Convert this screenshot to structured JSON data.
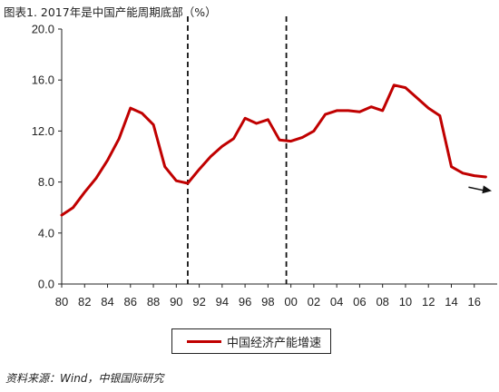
{
  "title": "图表1. 2017年是中国产能周期底部（%）",
  "source": "资料来源：Wind，中银国际研究",
  "legend": {
    "label": "中国经济产能增速"
  },
  "colors": {
    "series": "#c00000",
    "axis": "#222222",
    "markers": "#111111"
  },
  "chart_data": {
    "type": "line",
    "xlabel": "",
    "ylabel": "",
    "ylim": [
      0,
      20
    ],
    "xlim": [
      1980,
      2018
    ],
    "yticks": [
      0,
      4,
      8,
      12,
      16,
      20
    ],
    "ytick_labels": [
      "0.0",
      "4.0",
      "8.0",
      "12.0",
      "16.0",
      "20.0"
    ],
    "xticks": [
      1980,
      1982,
      1984,
      1986,
      1988,
      1990,
      1992,
      1994,
      1996,
      1998,
      2000,
      2002,
      2004,
      2006,
      2008,
      2010,
      2012,
      2014,
      2016
    ],
    "xtick_labels": [
      "80",
      "82",
      "84",
      "86",
      "88",
      "90",
      "92",
      "94",
      "96",
      "98",
      "00",
      "02",
      "04",
      "06",
      "08",
      "10",
      "12",
      "14",
      "16"
    ],
    "grid": false,
    "legend_position": "bottom",
    "series": [
      {
        "name": "中国经济产能增速",
        "x": [
          1980,
          1981,
          1982,
          1983,
          1984,
          1985,
          1986,
          1987,
          1988,
          1989,
          1990,
          1991,
          1992,
          1993,
          1994,
          1995,
          1996,
          1997,
          1998,
          1999,
          2000,
          2001,
          2002,
          2003,
          2004,
          2005,
          2006,
          2007,
          2008,
          2009,
          2010,
          2011,
          2012,
          2013,
          2014,
          2015,
          2016,
          2017
        ],
        "y": [
          5.4,
          6.0,
          7.2,
          8.3,
          9.7,
          11.4,
          13.8,
          13.4,
          12.5,
          9.2,
          8.1,
          7.9,
          9.0,
          10.0,
          10.8,
          11.4,
          13.0,
          12.6,
          12.9,
          11.3,
          11.2,
          11.5,
          12.0,
          13.3,
          13.6,
          13.6,
          13.5,
          13.9,
          13.6,
          15.6,
          15.4,
          14.6,
          13.8,
          13.2,
          9.2,
          8.7,
          8.5,
          8.4
        ]
      }
    ],
    "vertical_markers": [
      1991,
      1999.6
    ],
    "annotation": {
      "type": "arrow",
      "from": [
        2015.5,
        7.6
      ],
      "to": [
        2018,
        7.3
      ]
    }
  }
}
